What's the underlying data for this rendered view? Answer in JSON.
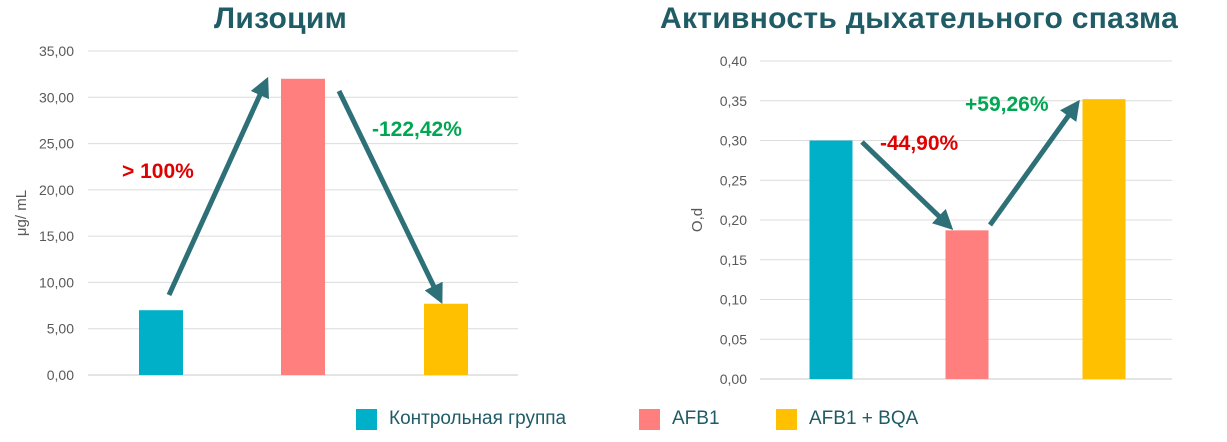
{
  "colors": {
    "control": "#00b0c8",
    "afb1": "#ff7f7f",
    "afb1_bqa": "#ffc000",
    "arrow": "#2e7077",
    "title": "#1f5c66",
    "increase": "#00a651",
    "decrease": "#e00000"
  },
  "legend": [
    {
      "label": "Контрольная группа",
      "color": "#00b0c8"
    },
    {
      "label": "AFB1",
      "color": "#ff7f7f"
    },
    {
      "label": "AFB1 + BQA",
      "color": "#ffc000"
    }
  ],
  "chart_data": [
    {
      "type": "bar",
      "title": "Лизоцим",
      "ylabel": "μg/ mL",
      "categories": [
        "Контрольная группа",
        "AFB1",
        "AFB1 + BQA"
      ],
      "values": [
        7.0,
        32.0,
        7.7
      ],
      "ylim": [
        0,
        35
      ],
      "yticks": [
        "0,00",
        "5,00",
        "10,00",
        "15,00",
        "20,00",
        "25,00",
        "30,00",
        "35,00"
      ],
      "grid": true,
      "annotations": [
        {
          "text": "> 100%",
          "color": "#e00000"
        },
        {
          "text": "-122,42%",
          "color": "#00a651"
        }
      ]
    },
    {
      "type": "bar",
      "title": "Активность дыхательного спазма",
      "ylabel": "O,d",
      "categories": [
        "Контрольная группа",
        "AFB1",
        "AFB1 + BQA"
      ],
      "values": [
        0.3,
        0.187,
        0.352
      ],
      "ylim": [
        0,
        0.4
      ],
      "yticks": [
        "0,00",
        "0,05",
        "0,10",
        "0,15",
        "0,20",
        "0,25",
        "0,30",
        "0,35",
        "0,40"
      ],
      "grid": true,
      "annotations": [
        {
          "text": "-44,90%",
          "color": "#e00000"
        },
        {
          "text": "+59,26%",
          "color": "#00a651"
        }
      ]
    }
  ]
}
